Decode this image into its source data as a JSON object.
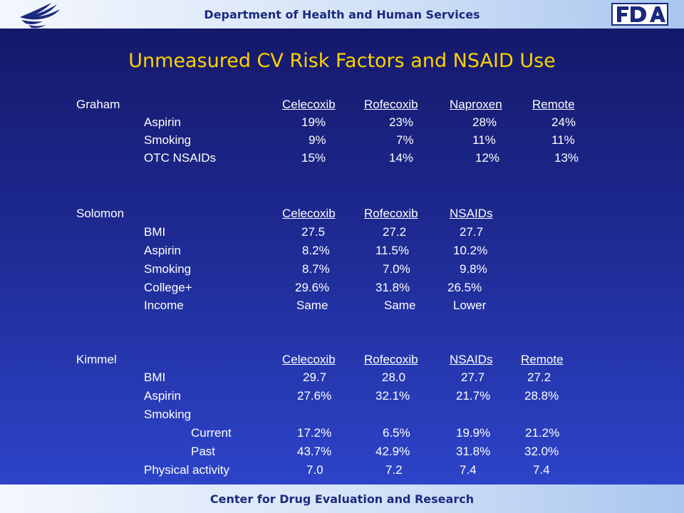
{
  "header": {
    "department": "Department of Health and Human Services"
  },
  "footer": {
    "center": "Center for Drug Evaluation and Research"
  },
  "slide": {
    "title": "Unmeasured CV Risk Factors and NSAID Use"
  },
  "graham": {
    "study": "Graham",
    "headers": [
      "Celecoxib",
      "Rofecoxib",
      "Naproxen",
      "Remote"
    ],
    "rows": [
      {
        "label": "Aspirin",
        "values": [
          "19%",
          "23%",
          "28%",
          "24%"
        ]
      },
      {
        "label": "Smoking",
        "values": [
          "9%",
          "7%",
          "11%",
          "11%"
        ]
      },
      {
        "label": "OTC NSAIDs",
        "values": [
          "15%",
          "14%",
          "12%",
          "13%"
        ]
      }
    ]
  },
  "solomon": {
    "study": "Solomon",
    "headers": [
      "Celecoxib",
      "Rofecoxib",
      "NSAIDs"
    ],
    "rows": [
      {
        "label": "BMI",
        "values": [
          "27.5",
          "27.2",
          "27.7"
        ]
      },
      {
        "label": "Aspirin",
        "values": [
          "8.2%",
          "11.5%",
          "10.2%"
        ]
      },
      {
        "label": "Smoking",
        "values": [
          "8.7%",
          "7.0%",
          "9.8%"
        ]
      },
      {
        "label": "College+",
        "values": [
          "29.6%",
          "31.8%",
          "26.5%"
        ]
      },
      {
        "label": "Income",
        "values": [
          "Same",
          "Same",
          "Lower"
        ]
      }
    ]
  },
  "kimmel": {
    "study": "Kimmel",
    "headers": [
      "Celecoxib",
      "Rofecoxib",
      "NSAIDs",
      "Remote"
    ],
    "rows": [
      {
        "label": "BMI",
        "values": [
          "29.7",
          "28.0",
          "27.7",
          "27.2"
        ]
      },
      {
        "label": "Aspirin",
        "values": [
          "27.6%",
          "32.1%",
          "21.7%",
          "28.8%"
        ]
      },
      {
        "label": "Smoking",
        "values": []
      },
      {
        "label": "Current",
        "values": [
          "17.2%",
          "6.5%",
          "19.9%",
          "21.2%"
        ]
      },
      {
        "label": "Past",
        "values": [
          "43.7%",
          "42.9%",
          "31.8%",
          "32.0%"
        ]
      },
      {
        "label": "Physical activity",
        "values": [
          "7.0",
          "7.2",
          "7.4",
          "7.4"
        ]
      }
    ]
  }
}
